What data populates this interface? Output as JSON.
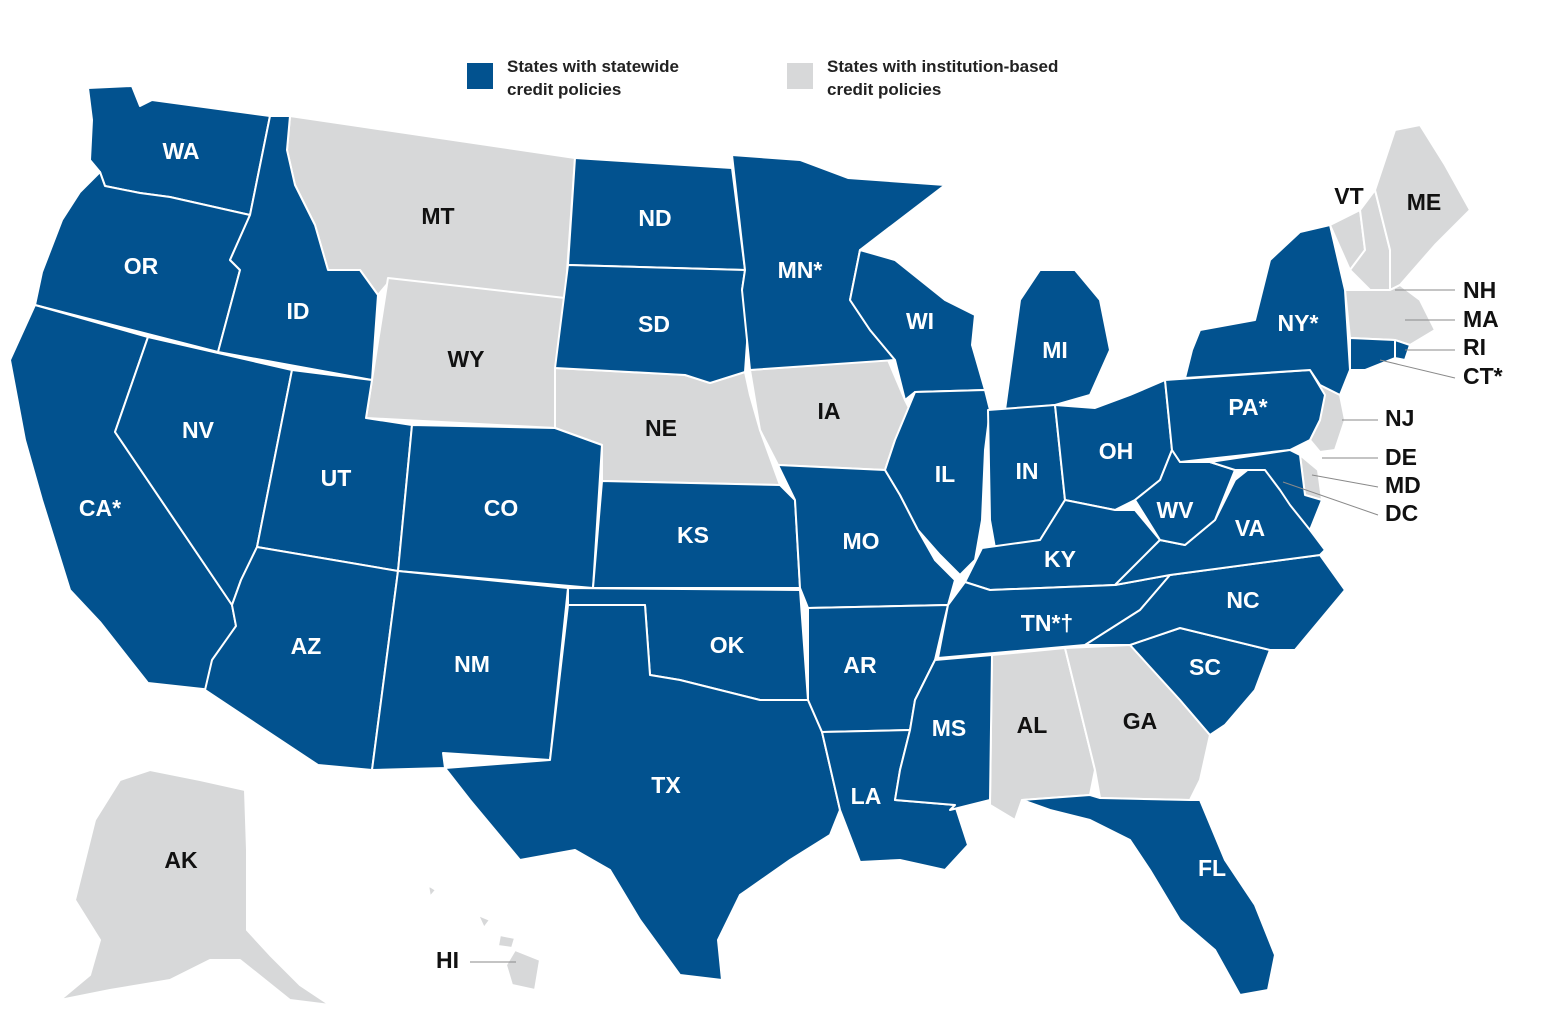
{
  "colors": {
    "statewide": "#02528F",
    "institution": "#D7D8D9",
    "label_on_statewide": "#FFFFFF",
    "label_on_institution": "#111111",
    "outline": "#FFFFFF"
  },
  "legend": [
    {
      "category": "statewide",
      "line1": "States with statewide",
      "line2": "credit policies"
    },
    {
      "category": "institution",
      "line1": "States with institution-based",
      "line2": "credit policies"
    }
  ],
  "states": [
    {
      "code": "WA",
      "label": "WA",
      "category": "statewide"
    },
    {
      "code": "OR",
      "label": "OR",
      "category": "statewide"
    },
    {
      "code": "CA",
      "label": "CA*",
      "category": "statewide"
    },
    {
      "code": "ID",
      "label": "ID",
      "category": "statewide"
    },
    {
      "code": "NV",
      "label": "NV",
      "category": "statewide"
    },
    {
      "code": "MT",
      "label": "MT",
      "category": "institution"
    },
    {
      "code": "WY",
      "label": "WY",
      "category": "institution"
    },
    {
      "code": "UT",
      "label": "UT",
      "category": "statewide"
    },
    {
      "code": "AZ",
      "label": "AZ",
      "category": "statewide"
    },
    {
      "code": "CO",
      "label": "CO",
      "category": "statewide"
    },
    {
      "code": "NM",
      "label": "NM",
      "category": "statewide"
    },
    {
      "code": "ND",
      "label": "ND",
      "category": "statewide"
    },
    {
      "code": "SD",
      "label": "SD",
      "category": "statewide"
    },
    {
      "code": "NE",
      "label": "NE",
      "category": "institution"
    },
    {
      "code": "KS",
      "label": "KS",
      "category": "statewide"
    },
    {
      "code": "OK",
      "label": "OK",
      "category": "statewide"
    },
    {
      "code": "TX",
      "label": "TX",
      "category": "statewide"
    },
    {
      "code": "MN",
      "label": "MN*",
      "category": "statewide"
    },
    {
      "code": "IA",
      "label": "IA",
      "category": "institution"
    },
    {
      "code": "MO",
      "label": "MO",
      "category": "statewide"
    },
    {
      "code": "AR",
      "label": "AR",
      "category": "statewide"
    },
    {
      "code": "LA",
      "label": "LA",
      "category": "statewide"
    },
    {
      "code": "WI",
      "label": "WI",
      "category": "statewide"
    },
    {
      "code": "IL",
      "label": "IL",
      "category": "statewide"
    },
    {
      "code": "MI",
      "label": "MI",
      "category": "statewide"
    },
    {
      "code": "IN",
      "label": "IN",
      "category": "statewide"
    },
    {
      "code": "OH",
      "label": "OH",
      "category": "statewide"
    },
    {
      "code": "KY",
      "label": "KY",
      "category": "statewide"
    },
    {
      "code": "TN",
      "label": "TN*†",
      "category": "statewide"
    },
    {
      "code": "MS",
      "label": "MS",
      "category": "statewide"
    },
    {
      "code": "AL",
      "label": "AL",
      "category": "institution"
    },
    {
      "code": "GA",
      "label": "GA",
      "category": "institution"
    },
    {
      "code": "FL",
      "label": "FL",
      "category": "statewide"
    },
    {
      "code": "SC",
      "label": "SC",
      "category": "statewide"
    },
    {
      "code": "NC",
      "label": "NC",
      "category": "statewide"
    },
    {
      "code": "VA",
      "label": "VA",
      "category": "statewide"
    },
    {
      "code": "WV",
      "label": "WV",
      "category": "statewide"
    },
    {
      "code": "PA",
      "label": "PA*",
      "category": "statewide"
    },
    {
      "code": "NY",
      "label": "NY*",
      "category": "statewide"
    },
    {
      "code": "VT",
      "label": "VT",
      "category": "institution"
    },
    {
      "code": "NH",
      "label": "NH",
      "category": "institution"
    },
    {
      "code": "ME",
      "label": "ME",
      "category": "institution"
    },
    {
      "code": "MA",
      "label": "MA",
      "category": "institution"
    },
    {
      "code": "RI",
      "label": "RI",
      "category": "statewide"
    },
    {
      "code": "CT",
      "label": "CT*",
      "category": "statewide"
    },
    {
      "code": "NJ",
      "label": "NJ",
      "category": "institution"
    },
    {
      "code": "DE",
      "label": "DE",
      "category": "institution"
    },
    {
      "code": "MD",
      "label": "MD",
      "category": "statewide"
    },
    {
      "code": "DC",
      "label": "DC",
      "category": "institution"
    },
    {
      "code": "AK",
      "label": "AK",
      "category": "institution"
    },
    {
      "code": "HI",
      "label": "HI",
      "category": "institution"
    }
  ]
}
